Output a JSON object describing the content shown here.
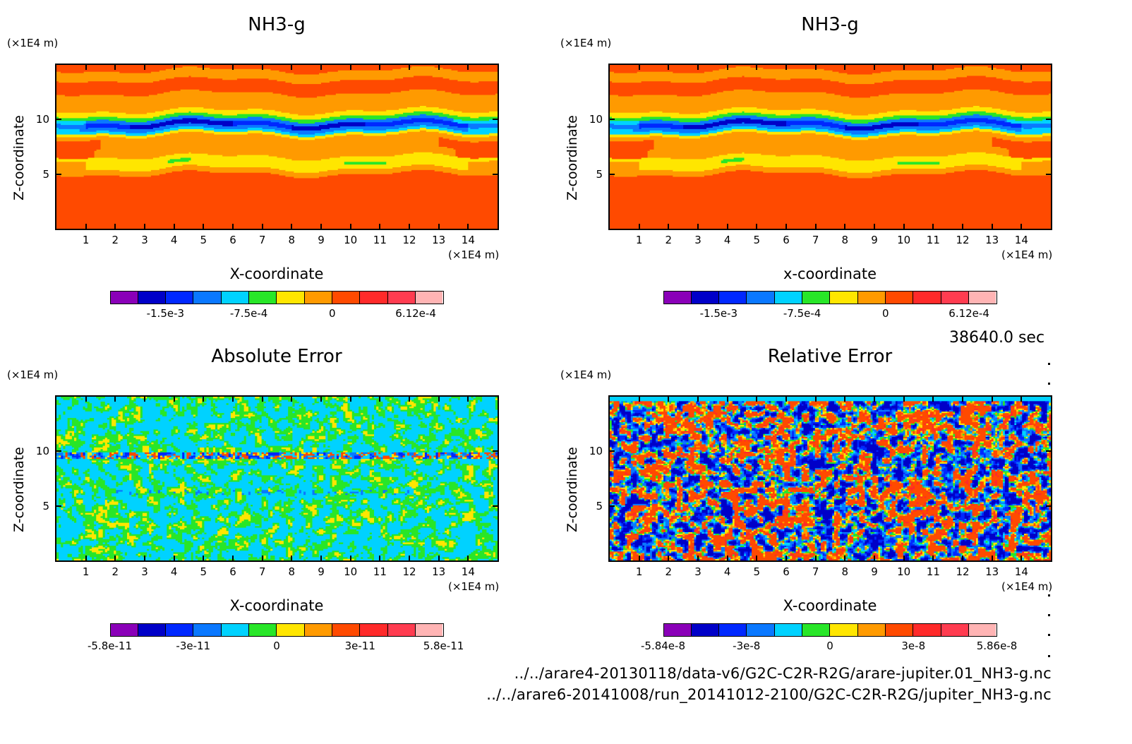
{
  "colors": [
    "#8a00b8",
    "#0000c8",
    "#0028ff",
    "#0a78ff",
    "#00d2ff",
    "#28e628",
    "#ffe600",
    "#ff9a00",
    "#ff4a00",
    "#ff2a2a",
    "#ff3c50",
    "#ffb4b4"
  ],
  "chart_data": [
    {
      "type": "heatmap",
      "title": "NH3-g",
      "xlabel": "X-coordinate",
      "ylabel": "Z-coordinate",
      "x_unit": "(×1E4 m)",
      "z_unit": "(×1E4 m)",
      "x_ticks": [
        "1",
        "2",
        "3",
        "4",
        "5",
        "6",
        "7",
        "8",
        "9",
        "10",
        "11",
        "12",
        "13",
        "14"
      ],
      "z_ticks": [
        "5",
        "10"
      ],
      "xlim": [
        0,
        15
      ],
      "zlim": [
        0,
        15
      ],
      "colorbar_labels": [
        "-1.5e-3",
        "-7.5e-4",
        "0",
        "6.12e-4"
      ],
      "colorbar_label_cells": [
        2,
        5,
        8,
        11
      ],
      "colorbar_range": [
        -0.0021,
        0.000612
      ]
    },
    {
      "type": "heatmap",
      "title": "NH3-g",
      "xlabel": "x-coordinate",
      "ylabel": "Z-coordinate",
      "x_unit": "(×1E4 m)",
      "z_unit": "(×1E4 m)",
      "x_ticks": [
        "1",
        "2",
        "3",
        "4",
        "5",
        "6",
        "7",
        "8",
        "9",
        "10",
        "11",
        "12",
        "13",
        "14"
      ],
      "z_ticks": [
        "5",
        "10"
      ],
      "xlim": [
        0,
        15
      ],
      "zlim": [
        0,
        15
      ],
      "colorbar_labels": [
        "-1.5e-3",
        "-7.5e-4",
        "0",
        "6.12e-4"
      ],
      "colorbar_label_cells": [
        2,
        5,
        8,
        11
      ],
      "colorbar_range": [
        -0.0021,
        0.000612
      ]
    },
    {
      "type": "heatmap",
      "title": "Absolute Error",
      "xlabel": "X-coordinate",
      "ylabel": "Z-coordinate",
      "x_unit": "(×1E4 m)",
      "z_unit": "(×1E4 m)",
      "x_ticks": [
        "1",
        "2",
        "3",
        "4",
        "5",
        "6",
        "7",
        "8",
        "9",
        "10",
        "11",
        "12",
        "13",
        "14"
      ],
      "z_ticks": [
        "5",
        "10"
      ],
      "xlim": [
        0,
        15
      ],
      "zlim": [
        0,
        15
      ],
      "colorbar_labels": [
        "-5.8e-11",
        "-3e-11",
        "0",
        "3e-11",
        "5.8e-11"
      ],
      "colorbar_label_cells": [
        0,
        3,
        6,
        9,
        12
      ],
      "colorbar_range": [
        -5.8e-11,
        5.8e-11
      ]
    },
    {
      "type": "heatmap",
      "title": "Relative Error",
      "xlabel": "X-coordinate",
      "ylabel": "Z-coordinate",
      "x_unit": "(×1E4 m)",
      "z_unit": "(×1E4 m)",
      "x_ticks": [
        "1",
        "2",
        "3",
        "4",
        "5",
        "6",
        "7",
        "8",
        "9",
        "10",
        "11",
        "12",
        "13",
        "14"
      ],
      "z_ticks": [
        "5",
        "10"
      ],
      "xlim": [
        0,
        15
      ],
      "zlim": [
        0,
        15
      ],
      "colorbar_labels": [
        "-5.84e-8",
        "-3e-8",
        "0",
        "3e-8",
        "5.86e-8"
      ],
      "colorbar_label_cells": [
        0,
        3,
        6,
        9,
        12
      ],
      "colorbar_range": [
        -5.84e-08,
        5.86e-08
      ]
    }
  ],
  "time_label": "38640.0 sec",
  "file_paths": [
    "../../arare4-20130118/data-v6/G2C-C2R-R2G/arare-jupiter.01_NH3-g.nc",
    "../../arare6-20141008/run_20141012-2100/G2C-C2R-R2G/jupiter_NH3-g.nc"
  ]
}
